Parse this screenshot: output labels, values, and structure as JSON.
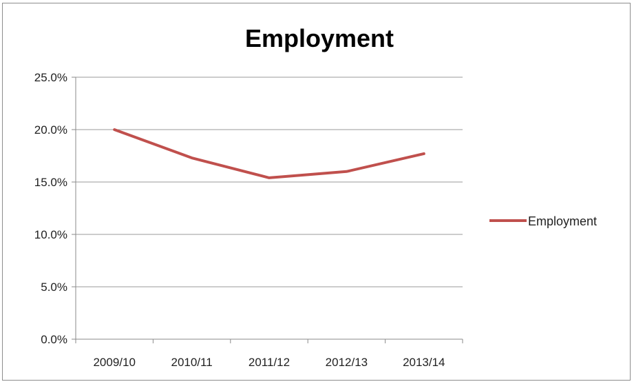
{
  "chart_data": {
    "type": "line",
    "title": "Employment",
    "categories": [
      "2009/10",
      "2010/11",
      "2011/12",
      "2012/13",
      "2013/14"
    ],
    "series": [
      {
        "name": "Employment",
        "values": [
          20.0,
          17.3,
          15.4,
          16.0,
          17.7
        ],
        "color": "#c0504d"
      }
    ],
    "ylim": [
      0,
      25
    ],
    "yticks": [
      "0.0%",
      "5.0%",
      "10.0%",
      "15.0%",
      "20.0%",
      "25.0%"
    ],
    "grid": true,
    "legend_position": "right"
  }
}
